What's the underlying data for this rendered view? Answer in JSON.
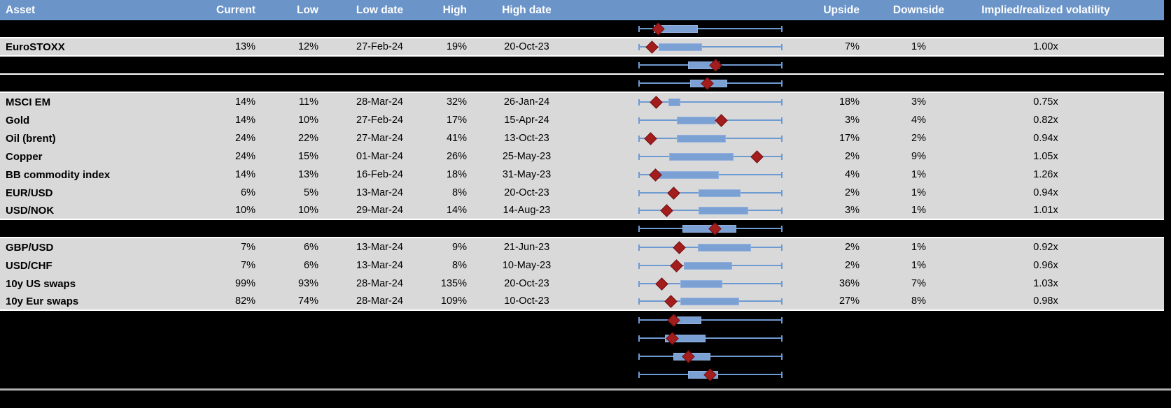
{
  "colors": {
    "header_bg": "#6B94C8",
    "row_bg": "#D9D9D9",
    "hidden_row_bg": "#000000",
    "whisker": "#6E9AD2",
    "box_fill": "#7AA0D4",
    "box_border": "#93B1DD",
    "diamond": "#A31D1D",
    "diamond_border": "#731111",
    "divider": "#FFFFFF",
    "bottom_line": "#AFAFAF",
    "header_text": "#FFFFFF",
    "cell_text": "#000000"
  },
  "header": {
    "columns": [
      "Asset",
      "Current",
      "Low",
      "Low date",
      "High",
      "High date",
      "",
      "Upside",
      "Downside",
      "Implied/realized volatility",
      ""
    ]
  },
  "rows": [
    {
      "type": "spacer",
      "asset": "",
      "current": "",
      "low": "",
      "low_date": "",
      "high": "",
      "high_date": "",
      "upside": "",
      "downside": "",
      "implied_realized": "",
      "divider_below": true,
      "range_plot": {
        "whisker_min_pct": 0,
        "whisker_max_pct": 100,
        "box_left_pct": 10.7,
        "box_right_pct": 41.1,
        "diamond_pct": 13.8
      }
    },
    {
      "type": "data",
      "asset": "EuroSTOXX",
      "current": "13%",
      "low": "12%",
      "low_date": "27-Feb-24",
      "high": "19%",
      "high_date": "20-Oct-23",
      "upside": "7%",
      "downside": "1%",
      "implied_realized": "1.00x",
      "divider_below": true,
      "range_plot": {
        "whisker_min_pct": 0,
        "whisker_max_pct": 100,
        "box_left_pct": 13.9,
        "box_right_pct": 44.2,
        "diamond_pct": 9.7
      }
    },
    {
      "type": "spacer",
      "asset": "",
      "current": "",
      "low": "",
      "low_date": "",
      "high": "",
      "high_date": "",
      "upside": "",
      "downside": "",
      "implied_realized": "",
      "divider_below": true,
      "range_plot": {
        "whisker_min_pct": 0,
        "whisker_max_pct": 100,
        "box_left_pct": 34.6,
        "box_right_pct": 56.2,
        "diamond_pct": 53.6
      }
    },
    {
      "type": "spacer",
      "asset": "",
      "current": "",
      "low": "",
      "low_date": "",
      "high": "",
      "high_date": "",
      "upside": "",
      "downside": "",
      "implied_realized": "",
      "divider_below": true,
      "range_plot": {
        "whisker_min_pct": 0,
        "whisker_max_pct": 100,
        "box_left_pct": 35.7,
        "box_right_pct": 61.7,
        "diamond_pct": 47.9
      }
    },
    {
      "type": "data",
      "asset": "MSCI EM",
      "current": "14%",
      "low": "11%",
      "low_date": "28-Mar-24",
      "high": "32%",
      "high_date": "26-Jan-24",
      "upside": "18%",
      "downside": "3%",
      "implied_realized": "0.75x",
      "divider_below": false,
      "range_plot": {
        "whisker_min_pct": 0,
        "whisker_max_pct": 100,
        "box_left_pct": 20.8,
        "box_right_pct": 29.2,
        "diamond_pct": 12.2
      }
    },
    {
      "type": "data",
      "asset": "Gold",
      "current": "14%",
      "low": "10%",
      "low_date": "27-Feb-24",
      "high": "17%",
      "high_date": "15-Apr-24",
      "upside": "3%",
      "downside": "4%",
      "implied_realized": "0.82x",
      "divider_below": false,
      "range_plot": {
        "whisker_min_pct": 0,
        "whisker_max_pct": 100,
        "box_left_pct": 26.5,
        "box_right_pct": 54.1,
        "diamond_pct": 57.3
      }
    },
    {
      "type": "data",
      "asset": "Oil (brent)",
      "current": "24%",
      "low": "22%",
      "low_date": "27-Mar-24",
      "high": "41%",
      "high_date": "13-Oct-23",
      "upside": "17%",
      "downside": "2%",
      "implied_realized": "0.94x",
      "divider_below": false,
      "range_plot": {
        "whisker_min_pct": 0,
        "whisker_max_pct": 100,
        "box_left_pct": 26.5,
        "box_right_pct": 60.6,
        "diamond_pct": 8.6
      }
    },
    {
      "type": "data",
      "asset": "Copper",
      "current": "24%",
      "low": "15%",
      "low_date": "01-Mar-24",
      "high": "26%",
      "high_date": "25-May-23",
      "upside": "2%",
      "downside": "9%",
      "implied_realized": "1.05x",
      "divider_below": false,
      "range_plot": {
        "whisker_min_pct": 0,
        "whisker_max_pct": 100,
        "box_left_pct": 21.6,
        "box_right_pct": 66.2,
        "diamond_pct": 82.5
      }
    },
    {
      "type": "data",
      "asset": "BB commodity index",
      "current": "14%",
      "low": "13%",
      "low_date": "16-Feb-24",
      "high": "18%",
      "high_date": "31-May-23",
      "upside": "4%",
      "downside": "1%",
      "implied_realized": "1.26x",
      "divider_below": false,
      "range_plot": {
        "whisker_min_pct": 0,
        "whisker_max_pct": 100,
        "box_left_pct": 11.9,
        "box_right_pct": 55.7,
        "diamond_pct": 11.9
      }
    },
    {
      "type": "data",
      "asset": "EUR/USD",
      "current": "6%",
      "low": "5%",
      "low_date": "13-Mar-24",
      "high": "8%",
      "high_date": "20-Oct-23",
      "upside": "2%",
      "downside": "1%",
      "implied_realized": "0.94x",
      "divider_below": false,
      "range_plot": {
        "whisker_min_pct": 0,
        "whisker_max_pct": 100,
        "box_left_pct": 41.9,
        "box_right_pct": 71.1,
        "diamond_pct": 24.5
      }
    },
    {
      "type": "data",
      "asset": "USD/NOK",
      "current": "10%",
      "low": "10%",
      "low_date": "29-Mar-24",
      "high": "14%",
      "high_date": "14-Aug-23",
      "upside": "3%",
      "downside": "1%",
      "implied_realized": "1.01x",
      "divider_below": true,
      "range_plot": {
        "whisker_min_pct": 0,
        "whisker_max_pct": 100,
        "box_left_pct": 41.9,
        "box_right_pct": 76.0,
        "diamond_pct": 19.5
      }
    },
    {
      "type": "spacer",
      "asset": "",
      "current": "",
      "low": "",
      "low_date": "",
      "high": "",
      "high_date": "",
      "upside": "",
      "downside": "",
      "implied_realized": "",
      "divider_below": true,
      "range_plot": {
        "whisker_min_pct": 0,
        "whisker_max_pct": 100,
        "box_left_pct": 30.5,
        "box_right_pct": 67.9,
        "diamond_pct": 53.2
      }
    },
    {
      "type": "data",
      "asset": "GBP/USD",
      "current": "7%",
      "low": "6%",
      "low_date": "13-Mar-24",
      "high": "9%",
      "high_date": "21-Jun-23",
      "upside": "2%",
      "downside": "1%",
      "implied_realized": "0.92x",
      "divider_below": false,
      "range_plot": {
        "whisker_min_pct": 0,
        "whisker_max_pct": 100,
        "box_left_pct": 41.1,
        "box_right_pct": 78.4,
        "diamond_pct": 28.4
      }
    },
    {
      "type": "data",
      "asset": "USD/CHF",
      "current": "7%",
      "low": "6%",
      "low_date": "13-Mar-24",
      "high": "8%",
      "high_date": "10-May-23",
      "upside": "2%",
      "downside": "1%",
      "implied_realized": "0.96x",
      "divider_below": false,
      "range_plot": {
        "whisker_min_pct": 0,
        "whisker_max_pct": 100,
        "box_left_pct": 31.7,
        "box_right_pct": 65.1,
        "diamond_pct": 26.5
      }
    },
    {
      "type": "data",
      "asset": "10y US swaps",
      "current": "99%",
      "low": "93%",
      "low_date": "28-Mar-24",
      "high": "135%",
      "high_date": "20-Oct-23",
      "upside": "36%",
      "downside": "7%",
      "implied_realized": "1.03x",
      "divider_below": false,
      "range_plot": {
        "whisker_min_pct": 0,
        "whisker_max_pct": 100,
        "box_left_pct": 29.2,
        "box_right_pct": 58.4,
        "diamond_pct": 16.2
      }
    },
    {
      "type": "data",
      "asset": "10y Eur swaps",
      "current": "82%",
      "low": "74%",
      "low_date": "28-Mar-24",
      "high": "109%",
      "high_date": "10-Oct-23",
      "upside": "27%",
      "downside": "8%",
      "implied_realized": "0.98x",
      "divider_below": true,
      "range_plot": {
        "whisker_min_pct": 0,
        "whisker_max_pct": 100,
        "box_left_pct": 29.2,
        "box_right_pct": 69.8,
        "diamond_pct": 22.4
      }
    },
    {
      "type": "spacer",
      "asset": "",
      "current": "",
      "low": "",
      "low_date": "",
      "high": "",
      "high_date": "",
      "upside": "",
      "downside": "",
      "implied_realized": "",
      "divider_below": false,
      "range_plot": {
        "whisker_min_pct": 0,
        "whisker_max_pct": 100,
        "box_left_pct": 26.9,
        "box_right_pct": 43.5,
        "diamond_pct": 24.5
      }
    },
    {
      "type": "spacer",
      "asset": "",
      "current": "",
      "low": "",
      "low_date": "",
      "high": "",
      "high_date": "",
      "upside": "",
      "downside": "",
      "implied_realized": "",
      "divider_below": false,
      "range_plot": {
        "whisker_min_pct": 0,
        "whisker_max_pct": 100,
        "box_left_pct": 18.3,
        "box_right_pct": 46.8,
        "diamond_pct": 23.5
      }
    },
    {
      "type": "spacer",
      "asset": "",
      "current": "",
      "low": "",
      "low_date": "",
      "high": "",
      "high_date": "",
      "upside": "",
      "downside": "",
      "implied_realized": "",
      "divider_below": false,
      "range_plot": {
        "whisker_min_pct": 0,
        "whisker_max_pct": 100,
        "box_left_pct": 24.4,
        "box_right_pct": 49.9,
        "diamond_pct": 34.9
      }
    },
    {
      "type": "spacer",
      "asset": "",
      "current": "",
      "low": "",
      "low_date": "",
      "high": "",
      "high_date": "",
      "upside": "",
      "downside": "",
      "implied_realized": "",
      "divider_below": false,
      "range_plot": {
        "whisker_min_pct": 0,
        "whisker_max_pct": 100,
        "box_left_pct": 34.6,
        "box_right_pct": 55.4,
        "diamond_pct": 49.7
      }
    }
  ]
}
